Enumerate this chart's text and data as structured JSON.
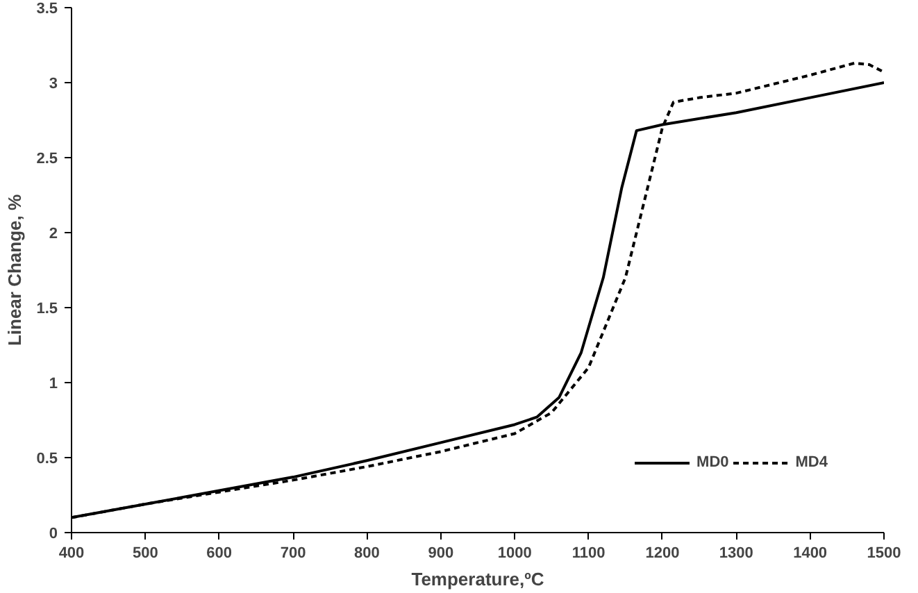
{
  "chart_data": {
    "type": "line",
    "xlabel": "Temperature,ºC",
    "ylabel": "Linear Change, %",
    "xlim": [
      400,
      1500
    ],
    "ylim": [
      0,
      3.5
    ],
    "xticks": [
      400,
      500,
      600,
      700,
      800,
      900,
      1000,
      1100,
      1200,
      1300,
      1400,
      1500
    ],
    "yticks": [
      0,
      0.5,
      1,
      1.5,
      2,
      2.5,
      3,
      3.5
    ],
    "grid": false,
    "legend": "bottom right",
    "marker": "none",
    "series": [
      {
        "name": "MD0",
        "color": "#000000",
        "line_style": "solid",
        "x": [
          400,
          500,
          600,
          700,
          800,
          900,
          1000,
          1030,
          1060,
          1090,
          1120,
          1145,
          1165,
          1200,
          1300,
          1400,
          1500
        ],
        "values": [
          0.1,
          0.19,
          0.28,
          0.37,
          0.48,
          0.6,
          0.72,
          0.77,
          0.9,
          1.2,
          1.7,
          2.3,
          2.68,
          2.72,
          2.8,
          2.9,
          3.0
        ]
      },
      {
        "name": "MD4",
        "color": "#000000",
        "line_style": "dashed",
        "x": [
          400,
          500,
          600,
          700,
          800,
          900,
          1000,
          1050,
          1100,
          1150,
          1180,
          1200,
          1215,
          1250,
          1300,
          1400,
          1460,
          1480,
          1500
        ],
        "values": [
          0.1,
          0.19,
          0.27,
          0.35,
          0.44,
          0.54,
          0.66,
          0.8,
          1.1,
          1.7,
          2.3,
          2.7,
          2.87,
          2.9,
          2.93,
          3.05,
          3.13,
          3.12,
          3.07
        ]
      }
    ]
  }
}
